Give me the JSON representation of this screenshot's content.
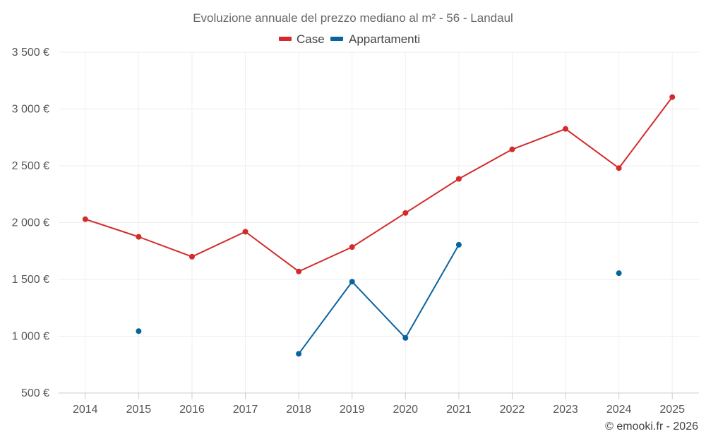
{
  "chart_data": {
    "type": "line",
    "title": "Evoluzione annuale del prezzo mediano al m² - 56 - Landaul",
    "categories": [
      "2014",
      "2015",
      "2016",
      "2017",
      "2018",
      "2019",
      "2020",
      "2021",
      "2022",
      "2023",
      "2024",
      "2025"
    ],
    "ylim": [
      500,
      3500
    ],
    "yticks": [
      500,
      1000,
      1500,
      2000,
      2500,
      3000,
      3500
    ],
    "ytick_labels": [
      "500 €",
      "1 000 €",
      "1 500 €",
      "2 000 €",
      "2 500 €",
      "3 000 €",
      "3 500 €"
    ],
    "grid": true,
    "legend_position": "top-center",
    "series": [
      {
        "name": "Case",
        "color": "#d42a2a",
        "values": [
          2030,
          1875,
          1700,
          1920,
          1570,
          1785,
          2085,
          2385,
          2645,
          2825,
          2480,
          3105
        ]
      },
      {
        "name": "Appartamenti",
        "color": "#0a63a0",
        "values": [
          null,
          1045,
          null,
          null,
          845,
          1480,
          985,
          1805,
          null,
          null,
          1555,
          null
        ]
      }
    ]
  },
  "credit": "© emooki.fr - 2026"
}
